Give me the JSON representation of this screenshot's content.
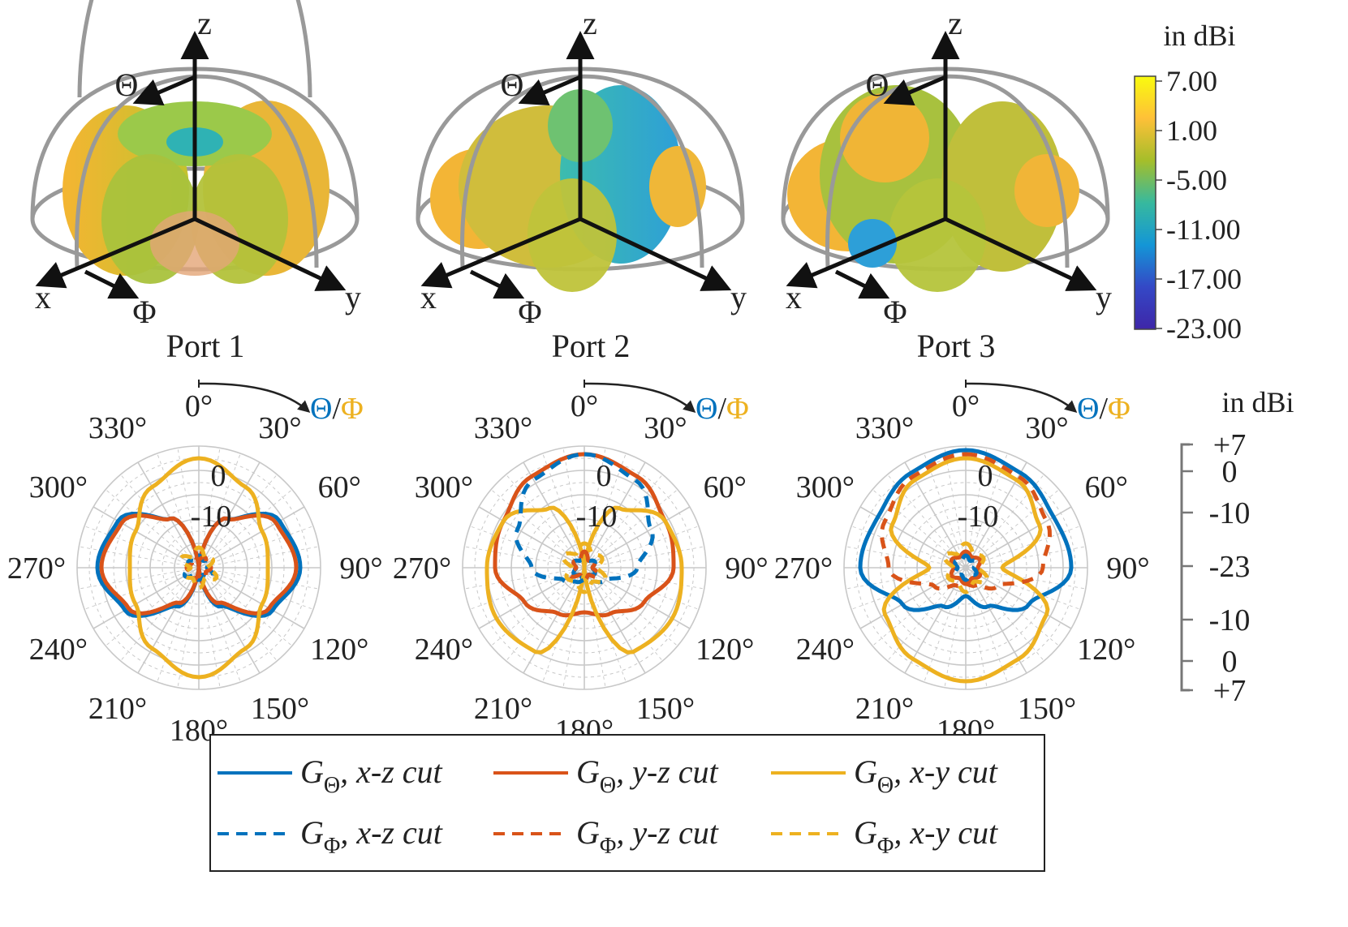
{
  "colors": {
    "blue": "#0072BD",
    "red": "#D95319",
    "yellow": "#EDB120",
    "grid": "#c8c8c8",
    "frame": "#999999"
  },
  "colorbar": {
    "title": "in dBi",
    "ticks": [
      "7.00",
      "1.00",
      "-5.00",
      "-11.00",
      "-17.00",
      "-23.00"
    ],
    "stops": [
      "#f9fb0e",
      "#fec038",
      "#a5be2a",
      "#37b99e",
      "#1496d6",
      "#3448c6",
      "#3e26a8"
    ]
  },
  "axes3d": {
    "z": "z",
    "x": "x",
    "y": "y",
    "theta": "Θ",
    "phi": "Φ"
  },
  "ports": [
    "Port 1",
    "Port 2",
    "Port 3"
  ],
  "polar_angles": [
    "0°",
    "30°",
    "60°",
    "90°",
    "120°",
    "150°",
    "180°",
    "210°",
    "240°",
    "270°",
    "300°",
    "330°"
  ],
  "polar_rings": [
    "0",
    "-10"
  ],
  "pol_key": {
    "theta": "Θ",
    "sep": "/",
    "phi": "Φ"
  },
  "radial_scale": {
    "title": "in dBi",
    "ticks": [
      "+7",
      "0",
      "-10",
      "-23",
      "-10",
      "0",
      "+7"
    ]
  },
  "legend": [
    {
      "sym": "G",
      "sub": "Θ",
      "text": ", x-z cut",
      "color": "blue",
      "dash": false
    },
    {
      "sym": "G",
      "sub": "Θ",
      "text": ", y-z cut",
      "color": "red",
      "dash": false
    },
    {
      "sym": "G",
      "sub": "Θ",
      "text": ", x-y cut",
      "color": "yellow",
      "dash": false
    },
    {
      "sym": "G",
      "sub": "Φ",
      "text": ", x-z cut",
      "color": "blue",
      "dash": true
    },
    {
      "sym": "G",
      "sub": "Φ",
      "text": ", y-z cut",
      "color": "red",
      "dash": true
    },
    {
      "sym": "G",
      "sub": "Φ",
      "text": ", x-y cut",
      "color": "yellow",
      "dash": true
    }
  ],
  "chart_data": [
    {
      "type": "line",
      "title": "Port 1",
      "projection": "polar",
      "r_range_dBi": [
        -23,
        7
      ],
      "angle_deg": [
        0,
        30,
        60,
        90,
        120,
        150,
        180,
        210,
        240,
        270,
        300,
        330
      ],
      "series": [
        {
          "name": "G_Θ, x-z cut",
          "values": [
            -23,
            -9,
            0,
            2,
            -2,
            -12,
            -23,
            -12,
            -2,
            2,
            0,
            -9
          ]
        },
        {
          "name": "G_Θ, y-z cut",
          "values": [
            -23,
            -9,
            -1,
            1,
            -3,
            -13,
            -23,
            -13,
            -3,
            1,
            -1,
            -9
          ]
        },
        {
          "name": "G_Θ, x-y cut",
          "values": [
            4,
            0,
            -5,
            -6,
            -5,
            0,
            4,
            0,
            -5,
            -6,
            -5,
            0
          ]
        },
        {
          "name": "G_Φ, x-z cut",
          "values": [
            -20,
            -21,
            -20,
            -21,
            -19,
            -21,
            -20,
            -21,
            -19,
            -21,
            -20,
            -21
          ]
        },
        {
          "name": "G_Φ, y-z cut",
          "values": [
            -21,
            -20,
            -21,
            -20,
            -21,
            -20,
            -21,
            -20,
            -21,
            -20,
            -21,
            -20
          ]
        },
        {
          "name": "G_Φ, x-y cut",
          "values": [
            -18,
            -20,
            -19,
            -21,
            -18,
            -20,
            -18,
            -20,
            -19,
            -21,
            -18,
            -20
          ]
        }
      ]
    },
    {
      "type": "line",
      "title": "Port 2",
      "projection": "polar",
      "r_range_dBi": [
        -23,
        7
      ],
      "angle_deg": [
        0,
        30,
        60,
        90,
        120,
        150,
        180,
        210,
        240,
        270,
        300,
        330
      ],
      "series": [
        {
          "name": "G_Θ, x-z cut",
          "values": [
            -20,
            -21,
            -20,
            -21,
            -20,
            -21,
            -20,
            -21,
            -20,
            -21,
            -20,
            -21
          ]
        },
        {
          "name": "G_Θ, y-z cut",
          "values": [
            5,
            3,
            0,
            -1,
            -6,
            -10,
            -12,
            -10,
            -6,
            -1,
            0,
            3
          ]
        },
        {
          "name": "G_Θ, x-y cut",
          "values": [
            -23,
            -6,
            0,
            1,
            2,
            1,
            -23,
            1,
            2,
            1,
            0,
            -6
          ]
        },
        {
          "name": "G_Φ, x-z cut",
          "values": [
            5,
            2,
            -4,
            -10,
            -17,
            -19,
            -20,
            -19,
            -17,
            -10,
            -4,
            2
          ]
        },
        {
          "name": "G_Φ, y-z cut",
          "values": [
            -19,
            -21,
            -20,
            -21,
            -19,
            -21,
            -20,
            -21,
            -19,
            -21,
            -20,
            -21
          ]
        },
        {
          "name": "G_Φ, x-y cut",
          "values": [
            -17,
            -19,
            -18,
            -20,
            -17,
            -19,
            -17,
            -19,
            -18,
            -20,
            -17,
            -19
          ]
        }
      ]
    },
    {
      "type": "line",
      "title": "Port 3",
      "projection": "polar",
      "r_range_dBi": [
        -23,
        7
      ],
      "angle_deg": [
        0,
        30,
        60,
        90,
        120,
        150,
        180,
        210,
        240,
        270,
        300,
        330
      ],
      "series": [
        {
          "name": "G_Θ, x-z cut",
          "values": [
            6,
            4,
            2,
            3,
            -5,
            -12,
            -16,
            -12,
            -5,
            3,
            2,
            4
          ]
        },
        {
          "name": "G_Θ, y-z cut",
          "values": [
            -19,
            -20,
            -19,
            -20,
            -19,
            -20,
            -19,
            -20,
            -19,
            -20,
            -19,
            -20
          ]
        },
        {
          "name": "G_Θ, x-y cut",
          "values": [
            4,
            2,
            -2,
            -14,
            0,
            3,
            5,
            3,
            0,
            -14,
            -2,
            2
          ]
        },
        {
          "name": "G_Φ, x-z cut",
          "values": [
            -20,
            -21,
            -20,
            -21,
            -20,
            -21,
            -20,
            -21,
            -20,
            -21,
            -20,
            -21
          ]
        },
        {
          "name": "G_Φ, y-z cut",
          "values": [
            5,
            3,
            0,
            -4,
            -14,
            -18,
            -19,
            -18,
            -14,
            -4,
            0,
            3
          ]
        },
        {
          "name": "G_Φ, x-y cut",
          "values": [
            -17,
            -19,
            -18,
            -20,
            -17,
            -19,
            -17,
            -19,
            -18,
            -20,
            -17,
            -19
          ]
        }
      ]
    }
  ]
}
